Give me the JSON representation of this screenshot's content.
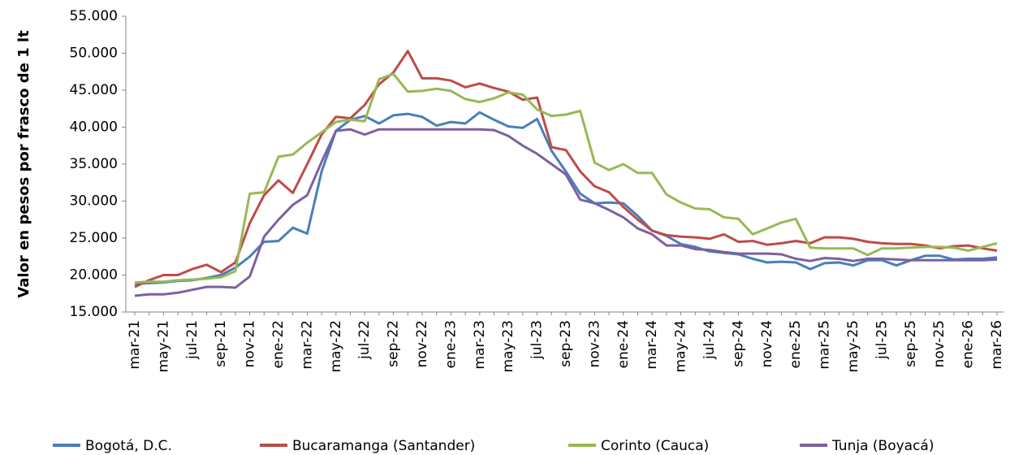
{
  "chart_data": {
    "type": "line",
    "y_label": "Valor en pesos por frasco de 1 lt",
    "categories": [
      "mar-21",
      null,
      "may-21",
      null,
      "jul-21",
      null,
      "sep-21",
      null,
      "nov-21",
      null,
      "ene-22",
      null,
      "mar-22",
      null,
      "may-22",
      null,
      "jul-22",
      null,
      "sep-22",
      null,
      "nov-22",
      null,
      "ene-23",
      null,
      "mar-23",
      null,
      "may-23",
      null,
      "jul-23",
      null,
      "sep-23",
      null,
      "nov-23",
      null,
      "ene-24",
      null,
      "mar-24",
      null,
      "may-24",
      null,
      "jul-24",
      null,
      "sep-24",
      null,
      "nov-24",
      null,
      "ene-25",
      null,
      "mar-25",
      null,
      "may-25",
      null,
      "jul-25",
      null,
      "sep-25",
      null,
      "nov-25",
      null,
      "ene-26",
      null,
      "mar-26"
    ],
    "ylim": [
      15000,
      55000
    ],
    "yticks": [
      {
        "value": 15000,
        "label": "15.000"
      },
      {
        "value": 20000,
        "label": "20.000"
      },
      {
        "value": 25000,
        "label": "25.000"
      },
      {
        "value": 30000,
        "label": "30.000"
      },
      {
        "value": 35000,
        "label": "35.000"
      },
      {
        "value": 40000,
        "label": "40.000"
      },
      {
        "value": 45000,
        "label": "45.000"
      },
      {
        "value": 50000,
        "label": "50.000"
      },
      {
        "value": 55000,
        "label": "55.000"
      }
    ],
    "legend": "bottom",
    "series": [
      {
        "name": "Bogotá, D.C.",
        "color": "#4a7ebb",
        "values": [
          18800,
          18900,
          19000,
          19200,
          19300,
          19600,
          20000,
          21000,
          22500,
          24500,
          24600,
          26400,
          25600,
          34000,
          39500,
          41000,
          41500,
          40500,
          41600,
          41800,
          41400,
          40200,
          40700,
          40500,
          42000,
          41000,
          40100,
          39900,
          41100,
          36800,
          34000,
          31000,
          29700,
          29800,
          29700,
          28000,
          26000,
          25300,
          24200,
          23800,
          23200,
          23000,
          22800,
          22200,
          21700,
          21800,
          21700,
          20800,
          21600,
          21700,
          21300,
          22000,
          22000,
          21300,
          22000,
          22600,
          22600,
          22100,
          22200,
          22200,
          22400
        ]
      },
      {
        "name": "Bucaramanga (Santander)",
        "color": "#be4b48",
        "values": [
          18400,
          19300,
          20000,
          20000,
          20800,
          21400,
          20400,
          21700,
          27000,
          30800,
          32800,
          31100,
          35000,
          39000,
          41400,
          41200,
          43000,
          45800,
          47400,
          50300,
          46600,
          46600,
          46300,
          45400,
          45900,
          45300,
          44800,
          43700,
          44000,
          37300,
          36900,
          34000,
          32000,
          31200,
          29200,
          27500,
          26000,
          25400,
          25200,
          25100,
          24900,
          25500,
          24500,
          24600,
          24100,
          24300,
          24600,
          24300,
          25100,
          25100,
          24900,
          24500,
          24300,
          24200,
          24200,
          24000,
          23600,
          23900,
          24000,
          23600,
          23300
        ]
      },
      {
        "name": "Corinto (Cauca)",
        "color": "#98b954",
        "values": [
          19000,
          19100,
          19100,
          19300,
          19400,
          19500,
          19700,
          20500,
          31000,
          31200,
          36000,
          36300,
          37900,
          39300,
          40700,
          41000,
          40800,
          46500,
          47200,
          44800,
          44900,
          45200,
          44900,
          43800,
          43400,
          43900,
          44700,
          44400,
          42400,
          41500,
          41700,
          42200,
          35200,
          34200,
          35000,
          33800,
          33800,
          30900,
          29800,
          29000,
          28900,
          27800,
          27600,
          25500,
          26300,
          27100,
          27600,
          23700,
          23600,
          23600,
          23600,
          22700,
          23600,
          23600,
          23700,
          23800,
          23800,
          23700,
          23300,
          23800,
          24300
        ]
      },
      {
        "name": "Tunja (Boyacá)",
        "color": "#7d60a0",
        "values": [
          17200,
          17400,
          17400,
          17600,
          18000,
          18400,
          18400,
          18300,
          19800,
          25200,
          27500,
          29500,
          30800,
          35300,
          39500,
          39700,
          39000,
          39700,
          39700,
          39700,
          39700,
          39700,
          39700,
          39700,
          39700,
          39600,
          38800,
          37500,
          36400,
          35000,
          33600,
          30200,
          29700,
          28800,
          27800,
          26300,
          25500,
          24000,
          24000,
          23500,
          23400,
          23100,
          22900,
          22900,
          22900,
          22800,
          22200,
          21900,
          22300,
          22200,
          21900,
          22200,
          22200,
          22100,
          22000,
          22000,
          22000,
          22000,
          22000,
          22000,
          22100
        ]
      }
    ]
  }
}
